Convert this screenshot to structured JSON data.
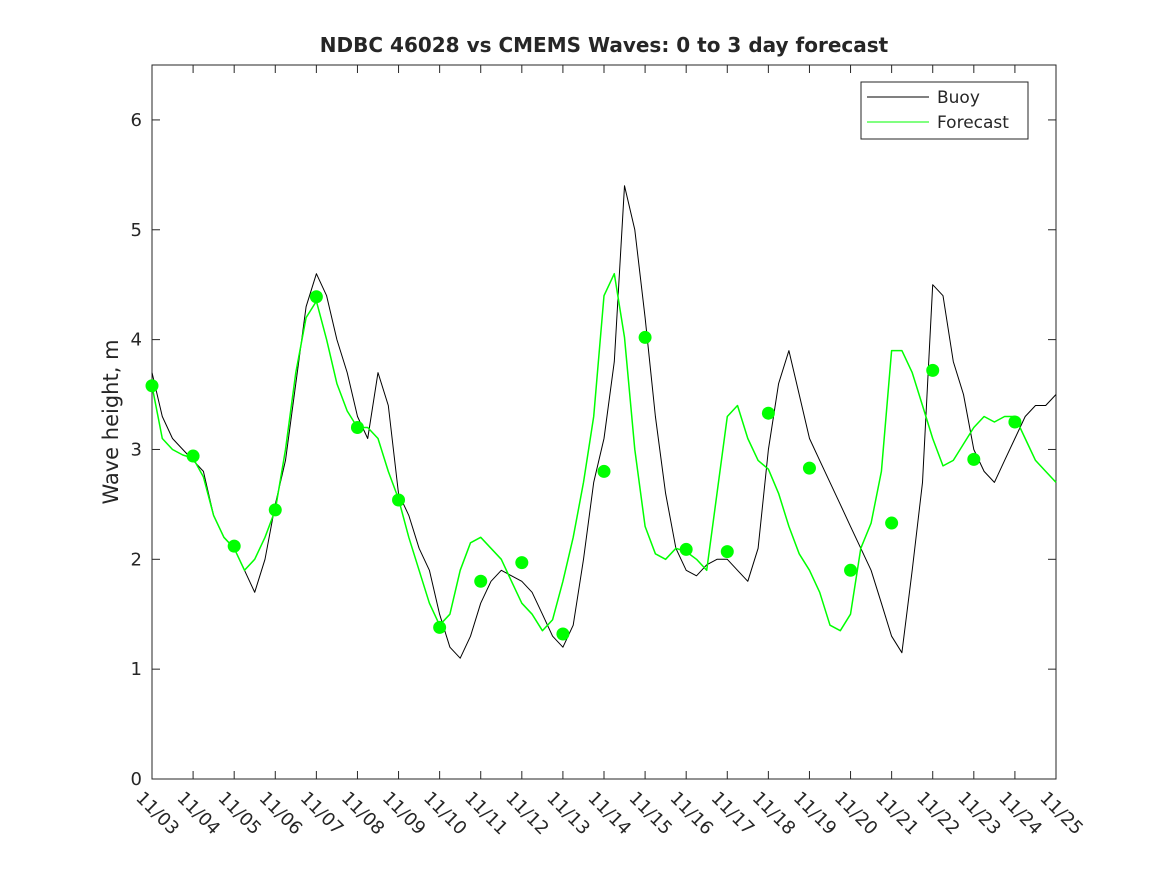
{
  "chart_data": {
    "type": "line",
    "title": "NDBC 46028 vs CMEMS Waves: 0 to 3 day forecast",
    "xlabel": "",
    "ylabel": "Wave height, m",
    "x_ticks": [
      "11/03",
      "11/04",
      "11/05",
      "11/06",
      "11/07",
      "11/08",
      "11/09",
      "11/10",
      "11/11",
      "11/12",
      "11/13",
      "11/14",
      "11/15",
      "11/16",
      "11/17",
      "11/18",
      "11/19",
      "11/20",
      "11/21",
      "11/22",
      "11/23",
      "11/24",
      "11/25"
    ],
    "xlim": [
      0,
      22
    ],
    "y_ticks": [
      0,
      1,
      2,
      3,
      4,
      5,
      6
    ],
    "ylim": [
      0,
      6.5
    ],
    "grid": false,
    "legend_position": "top-right",
    "legend": [
      "Buoy",
      "Forecast"
    ],
    "colors": {
      "buoy": "#000000",
      "forecast": "#00ff00",
      "axes": "#262626"
    },
    "series": [
      {
        "name": "Buoy",
        "x": [
          0,
          0.25,
          0.5,
          0.75,
          1,
          1.25,
          1.5,
          1.75,
          2,
          2.25,
          2.5,
          2.75,
          3,
          3.25,
          3.5,
          3.75,
          4,
          4.25,
          4.5,
          4.75,
          5,
          5.25,
          5.5,
          5.75,
          6,
          6.25,
          6.5,
          6.75,
          7,
          7.25,
          7.5,
          7.75,
          8,
          8.25,
          8.5,
          8.75,
          9,
          9.25,
          9.5,
          9.75,
          10,
          10.25,
          10.5,
          10.75,
          11,
          11.25,
          11.5,
          11.75,
          12,
          12.25,
          12.5,
          12.75,
          13,
          13.25,
          13.5,
          13.75,
          14,
          14.25,
          14.5,
          14.75,
          15,
          15.25,
          15.5,
          15.75,
          16,
          16.25,
          16.5,
          16.75,
          17,
          17.25,
          17.5,
          17.75,
          18,
          18.25,
          18.5,
          18.75,
          19,
          19.25,
          19.5,
          19.75,
          20,
          20.25,
          20.5,
          20.75,
          21,
          21.25,
          21.5,
          21.75,
          22
        ],
        "y": [
          3.7,
          3.3,
          3.1,
          3.0,
          2.9,
          2.8,
          2.4,
          2.2,
          2.1,
          1.9,
          1.7,
          2.0,
          2.5,
          2.9,
          3.6,
          4.3,
          4.6,
          4.4,
          4.0,
          3.7,
          3.3,
          3.1,
          3.7,
          3.4,
          2.6,
          2.4,
          2.1,
          1.9,
          1.5,
          1.2,
          1.1,
          1.3,
          1.6,
          1.8,
          1.9,
          1.85,
          1.8,
          1.7,
          1.5,
          1.3,
          1.2,
          1.4,
          2.0,
          2.7,
          3.1,
          3.8,
          5.4,
          5.0,
          4.2,
          3.3,
          2.6,
          2.1,
          1.9,
          1.85,
          1.95,
          2.0,
          2.0,
          1.9,
          1.8,
          2.1,
          3.0,
          3.6,
          3.9,
          3.5,
          3.1,
          2.9,
          2.7,
          2.5,
          2.3,
          2.1,
          1.9,
          1.6,
          1.3,
          1.15,
          1.9,
          2.7,
          4.5,
          4.4,
          3.8,
          3.5,
          3.0,
          2.8,
          2.7,
          2.9,
          3.1,
          3.3,
          3.4,
          3.4,
          3.5
        ]
      },
      {
        "name": "Forecast",
        "x": [
          0,
          0.25,
          0.5,
          0.75,
          1,
          1.25,
          1.5,
          1.75,
          2,
          2.25,
          2.5,
          2.75,
          3,
          3.25,
          3.5,
          3.75,
          4,
          4.25,
          4.5,
          4.75,
          5,
          5.25,
          5.5,
          5.75,
          6,
          6.25,
          6.5,
          6.75,
          7,
          7.25,
          7.5,
          7.75,
          8,
          8.25,
          8.5,
          8.75,
          9,
          9.25,
          9.5,
          9.75,
          10,
          10.25,
          10.5,
          10.75,
          11,
          11.25,
          11.5,
          11.75,
          12,
          12.25,
          12.5,
          12.75,
          13,
          13.25,
          13.5,
          13.75,
          14,
          14.25,
          14.5,
          14.75,
          15,
          15.25,
          15.5,
          15.75,
          16,
          16.25,
          16.5,
          16.75,
          17,
          17.25,
          17.5,
          17.75,
          18,
          18.25,
          18.5,
          18.75,
          19,
          19.25,
          19.5,
          19.75,
          20,
          20.25,
          20.5,
          20.75,
          21,
          21.25,
          21.5,
          21.75,
          22
        ],
        "y": [
          3.58,
          3.1,
          3.0,
          2.95,
          2.92,
          2.75,
          2.4,
          2.2,
          2.1,
          1.9,
          2.0,
          2.2,
          2.45,
          3.0,
          3.7,
          4.2,
          4.35,
          4.0,
          3.6,
          3.35,
          3.2,
          3.2,
          3.1,
          2.8,
          2.55,
          2.2,
          1.9,
          1.6,
          1.4,
          1.5,
          1.9,
          2.15,
          2.2,
          2.1,
          2.0,
          1.8,
          1.6,
          1.5,
          1.35,
          1.45,
          1.8,
          2.2,
          2.7,
          3.3,
          4.4,
          4.6,
          4.02,
          3.0,
          2.3,
          2.05,
          2.0,
          2.1,
          2.07,
          2.0,
          1.9,
          2.6,
          3.3,
          3.4,
          3.1,
          2.9,
          2.82,
          2.6,
          2.3,
          2.05,
          1.9,
          1.7,
          1.4,
          1.35,
          1.5,
          2.1,
          2.33,
          2.8,
          3.9,
          3.9,
          3.7,
          3.4,
          3.1,
          2.85,
          2.9,
          3.05,
          3.2,
          3.3,
          3.25,
          3.3,
          3.3,
          3.1,
          2.9,
          2.8,
          2.7
        ]
      },
      {
        "name": "",
        "x": [
          0,
          1,
          2,
          3,
          4,
          5,
          6,
          7,
          8,
          9,
          10,
          11,
          12,
          13,
          14,
          15,
          16,
          17,
          18,
          19,
          20,
          21
        ],
        "y": [
          3.58,
          2.94,
          2.12,
          2.45,
          4.39,
          3.2,
          2.54,
          1.38,
          1.8,
          1.97,
          1.32,
          2.8,
          4.02,
          2.09,
          2.07,
          3.33,
          2.83,
          1.9,
          2.33,
          3.72,
          2.91,
          3.25
        ]
      }
    ]
  }
}
